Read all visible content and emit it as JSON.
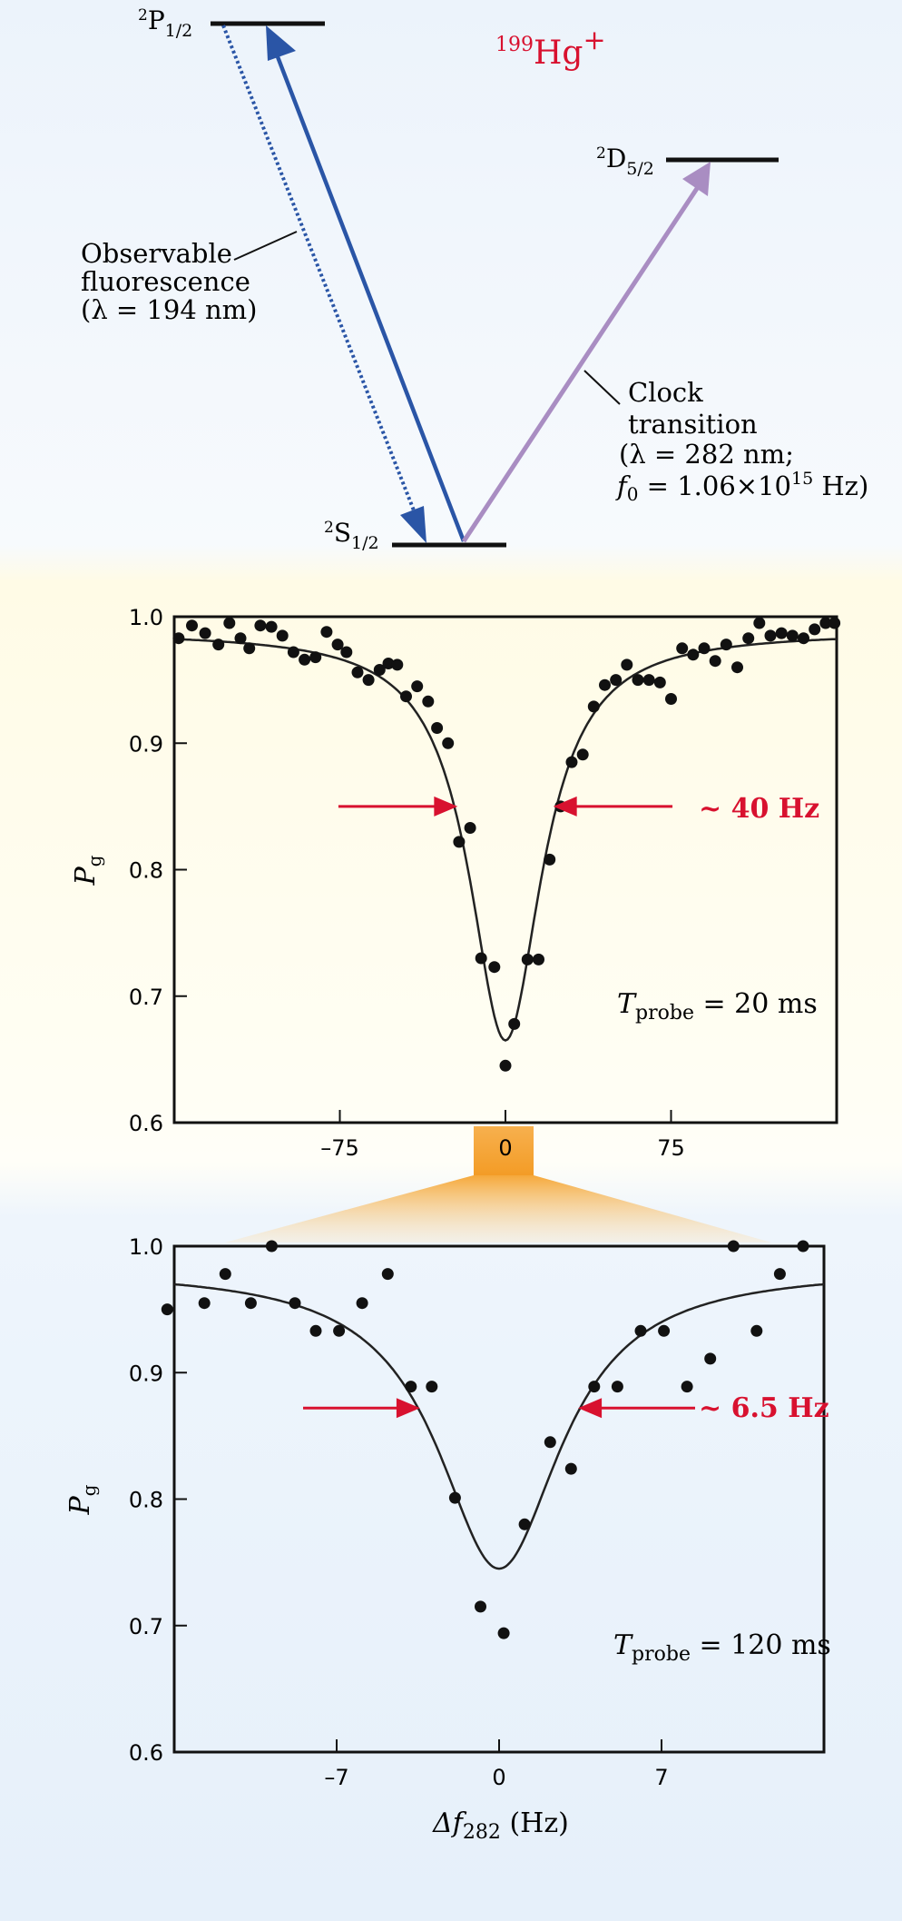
{
  "energy_diagram": {
    "ion_label": {
      "mass": "199",
      "element": "Hg",
      "charge": "+"
    },
    "levels": [
      {
        "id": "p12",
        "term": "P",
        "mult": "2",
        "j": "1/2"
      },
      {
        "id": "d52",
        "term": "D",
        "mult": "2",
        "j": "5/2"
      },
      {
        "id": "s12",
        "term": "S",
        "mult": "2",
        "j": "1/2"
      }
    ],
    "fluorescence_label": [
      "Observable",
      "fluorescence",
      "(λ = 194 nm)"
    ],
    "clock_label": [
      "Clock",
      "transition",
      "(λ = 282 nm;"
    ],
    "clock_freq": {
      "sym": "f",
      "sub": "0",
      "eq": " = 1.06×10",
      "exp": "15",
      "unit": " Hz)"
    },
    "colors": {
      "excite": "#2a55a6",
      "fluor": "#2a55a6",
      "clock": "#a98dc2",
      "ion": "#d8112f"
    }
  },
  "chart_data": [
    {
      "type": "scatter",
      "title": "",
      "xlabel": "",
      "ylabel": "P_g",
      "ylabel_sym": "P",
      "ylabel_sub": "g",
      "xlim": [
        -150,
        150
      ],
      "ylim": [
        0.6,
        1.0
      ],
      "xticks": [
        {
          "v": -75,
          "t": "–75"
        },
        {
          "v": 0,
          "t": "0"
        },
        {
          "v": 75,
          "t": "75"
        }
      ],
      "yticks": [
        {
          "v": 0.6,
          "t": "0.6"
        },
        {
          "v": 0.7,
          "t": "0.7"
        },
        {
          "v": 0.8,
          "t": "0.8"
        },
        {
          "v": 0.9,
          "t": "0.9"
        },
        {
          "v": 1.0,
          "t": "1.0"
        }
      ],
      "fit": {
        "baseline": 0.988,
        "depth": 0.323,
        "hwhm": 20
      },
      "linewidth_label": "~ 40 Hz",
      "linewidth_y": 0.85,
      "tprobe": {
        "sym": "T",
        "sub": "probe",
        "value": " = 20 ms"
      },
      "points": [
        [
          -148,
          0.983
        ],
        [
          -142,
          0.993
        ],
        [
          -136,
          0.987
        ],
        [
          -130,
          0.978
        ],
        [
          -125,
          0.995
        ],
        [
          -120,
          0.983
        ],
        [
          -116,
          0.975
        ],
        [
          -111,
          0.993
        ],
        [
          -106,
          0.992
        ],
        [
          -101,
          0.985
        ],
        [
          -96,
          0.972
        ],
        [
          -91,
          0.966
        ],
        [
          -86,
          0.968
        ],
        [
          -81,
          0.988
        ],
        [
          -76,
          0.978
        ],
        [
          -72,
          0.972
        ],
        [
          -67,
          0.956
        ],
        [
          -62,
          0.95
        ],
        [
          -57,
          0.958
        ],
        [
          -53,
          0.963
        ],
        [
          -49,
          0.962
        ],
        [
          -45,
          0.937
        ],
        [
          -40,
          0.945
        ],
        [
          -35,
          0.933
        ],
        [
          -31,
          0.912
        ],
        [
          -26,
          0.9
        ],
        [
          -21,
          0.822
        ],
        [
          -16,
          0.833
        ],
        [
          -11,
          0.73
        ],
        [
          -5,
          0.723
        ],
        [
          0,
          0.645
        ],
        [
          4,
          0.678
        ],
        [
          10,
          0.729
        ],
        [
          15,
          0.729
        ],
        [
          20,
          0.808
        ],
        [
          25,
          0.85
        ],
        [
          30,
          0.885
        ],
        [
          35,
          0.891
        ],
        [
          40,
          0.929
        ],
        [
          45,
          0.946
        ],
        [
          50,
          0.95
        ],
        [
          55,
          0.962
        ],
        [
          60,
          0.95
        ],
        [
          65,
          0.95
        ],
        [
          70,
          0.948
        ],
        [
          75,
          0.935
        ],
        [
          80,
          0.975
        ],
        [
          85,
          0.97
        ],
        [
          90,
          0.975
        ],
        [
          95,
          0.965
        ],
        [
          100,
          0.978
        ],
        [
          105,
          0.96
        ],
        [
          110,
          0.983
        ],
        [
          115,
          0.995
        ],
        [
          120,
          0.985
        ],
        [
          125,
          0.987
        ],
        [
          130,
          0.985
        ],
        [
          135,
          0.983
        ],
        [
          140,
          0.99
        ],
        [
          145,
          0.995
        ],
        [
          149,
          0.995
        ]
      ]
    },
    {
      "type": "scatter",
      "title": "",
      "xlabel_sym": "Δf",
      "xlabel_sub": "282",
      "xlabel_unit": " (Hz)",
      "ylabel": "P_g",
      "ylabel_sym": "P",
      "ylabel_sub": "g",
      "xlim": [
        -14,
        14
      ],
      "ylim": [
        0.6,
        1.0
      ],
      "xticks": [
        {
          "v": -7,
          "t": "–7"
        },
        {
          "v": 0,
          "t": "0"
        },
        {
          "v": 7,
          "t": "7"
        }
      ],
      "yticks": [
        {
          "v": 0.6,
          "t": "0.6"
        },
        {
          "v": 0.7,
          "t": "0.7"
        },
        {
          "v": 0.8,
          "t": "0.8"
        },
        {
          "v": 0.9,
          "t": "0.9"
        },
        {
          "v": 1.0,
          "t": "1.0"
        }
      ],
      "fit": {
        "baseline": 0.982,
        "depth": 0.237,
        "hwhm": 3.25
      },
      "linewidth_label": "~ 6.5 Hz",
      "linewidth_y": 0.872,
      "tprobe": {
        "sym": "T",
        "sub": "probe",
        "value": " = 120 ms"
      },
      "points": [
        [
          -14.3,
          0.95
        ],
        [
          -12.7,
          0.955
        ],
        [
          -11.8,
          0.978
        ],
        [
          -10.7,
          0.955
        ],
        [
          -9.8,
          1.0
        ],
        [
          -8.8,
          0.955
        ],
        [
          -7.9,
          0.933
        ],
        [
          -6.9,
          0.933
        ],
        [
          -5.9,
          0.955
        ],
        [
          -4.8,
          0.978
        ],
        [
          -3.8,
          0.889
        ],
        [
          -2.9,
          0.889
        ],
        [
          -1.9,
          0.801
        ],
        [
          -0.8,
          0.715
        ],
        [
          0.2,
          0.694
        ],
        [
          1.1,
          0.78
        ],
        [
          2.2,
          0.845
        ],
        [
          3.1,
          0.824
        ],
        [
          4.1,
          0.889
        ],
        [
          5.1,
          0.889
        ],
        [
          6.1,
          0.933
        ],
        [
          7.1,
          0.933
        ],
        [
          8.1,
          0.889
        ],
        [
          9.1,
          0.911
        ],
        [
          10.1,
          1.0
        ],
        [
          11.1,
          0.933
        ],
        [
          12.1,
          0.978
        ],
        [
          13.1,
          1.0
        ]
      ]
    }
  ]
}
